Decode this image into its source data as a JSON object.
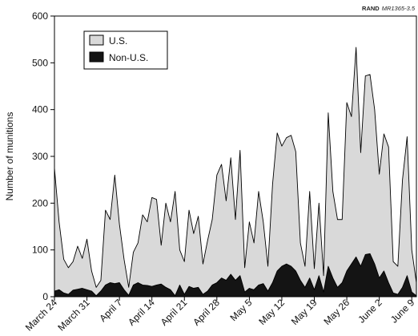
{
  "source": {
    "org": "RAND",
    "code": "MR1365-3.5"
  },
  "chart_data": {
    "type": "area",
    "ylabel": "Number of munitions",
    "xlabel": "",
    "ylim": [
      0,
      600
    ],
    "yticks": [
      0,
      100,
      200,
      300,
      400,
      500,
      600
    ],
    "x_tick_labels": [
      "March 24",
      "March 31",
      "April 7",
      "April 14",
      "April 21",
      "April 28",
      "May 5",
      "May 12",
      "May 19",
      "May 26",
      "June 2",
      "June 9"
    ],
    "x_tick_days": [
      0,
      7,
      14,
      21,
      28,
      35,
      42,
      49,
      56,
      63,
      70,
      77
    ],
    "legend_position": "top-left",
    "series": [
      {
        "name": "U.S.",
        "color": "#d9d9d9",
        "stroke": "#000000",
        "x": [
          0,
          1,
          2,
          3,
          4,
          5,
          6,
          7,
          8,
          9,
          10,
          11,
          12,
          13,
          14,
          15,
          16,
          17,
          18,
          19,
          20,
          21,
          22,
          23,
          24,
          25,
          26,
          27,
          28,
          29,
          30,
          31,
          32,
          33,
          34,
          35,
          36,
          37,
          38,
          39,
          40,
          41,
          42,
          43,
          44,
          45,
          46,
          47,
          48,
          49,
          50,
          51,
          52,
          53,
          54,
          55,
          56,
          57,
          58,
          59,
          60,
          61,
          62,
          63,
          64,
          65,
          66,
          67,
          68,
          69,
          70,
          71,
          72,
          73,
          74,
          75,
          76,
          77,
          78
        ],
        "values": [
          275,
          160,
          80,
          62,
          75,
          108,
          82,
          123,
          55,
          20,
          35,
          185,
          165,
          260,
          155,
          80,
          20,
          95,
          115,
          175,
          160,
          212,
          208,
          110,
          200,
          160,
          225,
          100,
          75,
          185,
          135,
          172,
          70,
          120,
          165,
          260,
          283,
          205,
          297,
          165,
          313,
          62,
          160,
          115,
          225,
          160,
          65,
          240,
          350,
          322,
          340,
          345,
          310,
          115,
          65,
          225,
          60,
          200,
          45,
          393,
          225,
          165,
          165,
          415,
          385,
          533,
          308,
          472,
          475,
          400,
          262,
          348,
          320,
          75,
          65,
          250,
          342,
          100,
          30
        ]
      },
      {
        "name": "Non-U.S.",
        "color": "#141414",
        "stroke": "#000000",
        "x": [
          0,
          1,
          2,
          3,
          4,
          5,
          6,
          7,
          8,
          9,
          10,
          11,
          12,
          13,
          14,
          15,
          16,
          17,
          18,
          19,
          20,
          21,
          22,
          23,
          24,
          25,
          26,
          27,
          28,
          29,
          30,
          31,
          32,
          33,
          34,
          35,
          36,
          37,
          38,
          39,
          40,
          41,
          42,
          43,
          44,
          45,
          46,
          47,
          48,
          49,
          50,
          51,
          52,
          53,
          54,
          55,
          56,
          57,
          58,
          59,
          60,
          61,
          62,
          63,
          64,
          65,
          66,
          67,
          68,
          69,
          70,
          71,
          72,
          73,
          74,
          75,
          76,
          77,
          78
        ],
        "values": [
          12,
          15,
          8,
          5,
          14,
          16,
          18,
          15,
          12,
          2,
          12,
          25,
          30,
          28,
          30,
          15,
          3,
          25,
          30,
          25,
          24,
          22,
          25,
          27,
          20,
          15,
          2,
          25,
          5,
          22,
          18,
          20,
          5,
          12,
          25,
          30,
          40,
          35,
          48,
          35,
          45,
          10,
          18,
          15,
          25,
          28,
          12,
          30,
          55,
          65,
          70,
          65,
          55,
          35,
          20,
          40,
          15,
          45,
          10,
          65,
          40,
          20,
          30,
          55,
          70,
          85,
          65,
          90,
          92,
          70,
          40,
          55,
          30,
          8,
          5,
          20,
          45,
          10,
          2
        ]
      }
    ]
  }
}
